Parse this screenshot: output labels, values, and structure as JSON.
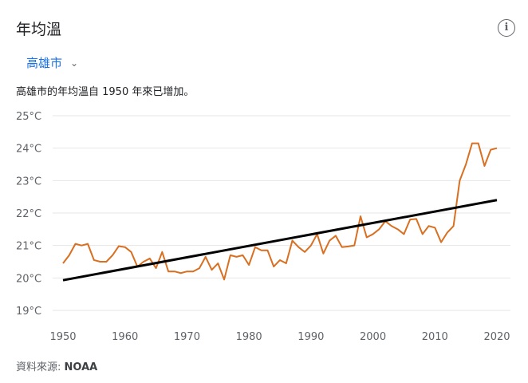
{
  "header": {
    "title": "年均溫",
    "info_icon": "info-icon"
  },
  "location": {
    "selected": "高雄市",
    "icon": "chevron-down-icon"
  },
  "description": "高雄市的年均溫自 1950 年來已增加。",
  "source": {
    "label": "資料來源:",
    "name": "NOAA"
  },
  "chart_data": {
    "type": "line",
    "title": "",
    "xlabel": "",
    "ylabel": "",
    "xlim": [
      1950,
      2020
    ],
    "ylim": [
      19,
      25
    ],
    "x_ticks": [
      "1950",
      "1960",
      "1970",
      "1980",
      "1990",
      "2000",
      "2010",
      "2020"
    ],
    "y_ticks": [
      "19°C",
      "20°C",
      "21°C",
      "22°C",
      "23°C",
      "24°C",
      "25°C"
    ],
    "grid": true,
    "colors": {
      "series": "#d86f21",
      "trend": "#000000"
    },
    "x": [
      1950,
      1951,
      1952,
      1953,
      1954,
      1955,
      1956,
      1957,
      1958,
      1959,
      1960,
      1961,
      1962,
      1963,
      1964,
      1965,
      1966,
      1967,
      1968,
      1969,
      1970,
      1971,
      1972,
      1973,
      1974,
      1975,
      1976,
      1977,
      1978,
      1979,
      1980,
      1981,
      1982,
      1983,
      1984,
      1985,
      1986,
      1987,
      1988,
      1989,
      1990,
      1991,
      1992,
      1993,
      1994,
      1995,
      1996,
      1997,
      1998,
      1999,
      2000,
      2001,
      2002,
      2003,
      2004,
      2005,
      2006,
      2007,
      2008,
      2009,
      2010,
      2011,
      2012,
      2013,
      2014,
      2015,
      2016,
      2017,
      2018,
      2019,
      2020
    ],
    "series": [
      {
        "values": [
          20.45,
          20.7,
          21.05,
          21.0,
          21.05,
          20.55,
          20.5,
          20.5,
          20.7,
          20.98,
          20.95,
          20.8,
          20.35,
          20.5,
          20.6,
          20.3,
          20.8,
          20.2,
          20.2,
          20.15,
          20.2,
          20.2,
          20.3,
          20.65,
          20.25,
          20.45,
          19.95,
          20.7,
          20.65,
          20.7,
          20.4,
          20.95,
          20.85,
          20.85,
          20.35,
          20.55,
          20.45,
          21.15,
          20.95,
          20.8,
          21.0,
          21.35,
          20.75,
          21.15,
          21.3,
          20.95,
          20.97,
          21.0,
          21.9,
          21.25,
          21.35,
          21.5,
          21.75,
          21.6,
          21.5,
          21.35,
          21.8,
          21.82,
          21.35,
          21.6,
          21.55,
          21.1,
          21.4,
          21.6,
          23.0,
          23.5,
          24.15,
          24.15,
          23.45,
          23.95,
          24.0
        ]
      },
      {
        "type": "trend",
        "x": [
          1950,
          2020
        ],
        "values": [
          19.93,
          22.4
        ]
      }
    ]
  }
}
